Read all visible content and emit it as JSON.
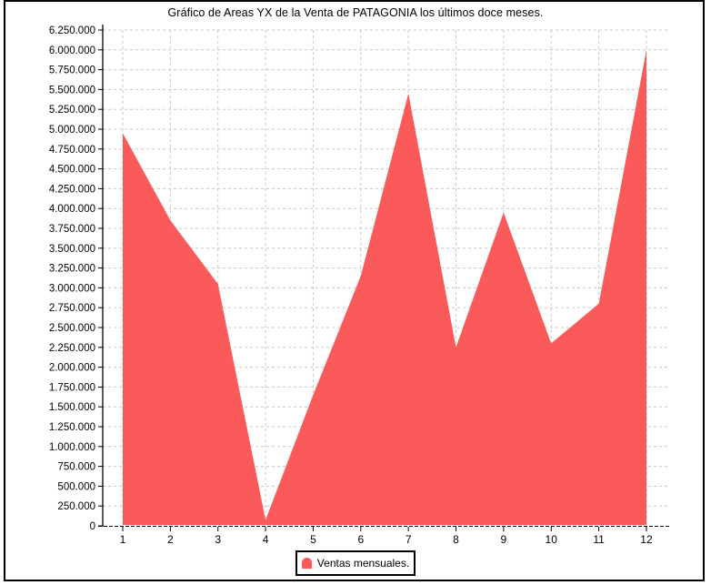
{
  "title": "Gráfico de Areas YX de la Venta de PATAGONIA los últimos doce meses.",
  "legend": {
    "label": "Ventas mensuales.",
    "marker_color": "#FA5A5A"
  },
  "colors": {
    "area": "#FA5A5A",
    "grid": "#C8C8C8",
    "axis": "#000000",
    "background": "#FFFFFF",
    "frame_border": "#000000"
  },
  "chart_data": {
    "type": "area",
    "title": "Gráfico de Areas YX de la Venta de PATAGONIA los últimos doce meses.",
    "x": [
      1,
      2,
      3,
      4,
      5,
      6,
      7,
      8,
      9,
      10,
      11,
      12
    ],
    "x_tick_labels": [
      "1",
      "2",
      "3",
      "4",
      "5",
      "6",
      "7",
      "8",
      "9",
      "10",
      "11",
      "12"
    ],
    "series": [
      {
        "name": "Ventas mensuales.",
        "values": [
          4950000,
          3850000,
          3050000,
          75000,
          1650000,
          3150000,
          5450000,
          2250000,
          3950000,
          2300000,
          2800000,
          6000000
        ]
      }
    ],
    "xlabel": "",
    "ylabel": "",
    "ylim": [
      0,
      6250000
    ],
    "ytick_step": 250000,
    "ytick_label_format": "thousands-dot",
    "grid": true,
    "grid_style": "dashed",
    "zero_line": "dashed-black",
    "legend_position": "bottom-center"
  }
}
